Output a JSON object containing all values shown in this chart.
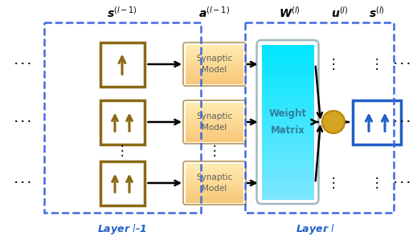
{
  "fig_width": 5.14,
  "fig_height": 3.04,
  "dpi": 100,
  "bg_color": "#ffffff",
  "layer_l1_label": "Layer $l$-1",
  "layer_l_label": "Layer $l$",
  "header_s_l1": "$\\boldsymbol{s}^{(l-1)}$",
  "header_a_l1": "$\\boldsymbol{a}^{(l-1)}$",
  "header_W_l": "$\\boldsymbol{W}^{(l)}$",
  "header_u_l": "$\\boldsymbol{u}^{(l)}$",
  "header_s_l": "$\\boldsymbol{s}^{(l)}$",
  "neuron_box_color": "#8B6914",
  "neuron_fill_color": "#ffffff",
  "synaptic_fill_top": "#fde8b0",
  "synaptic_fill_bot": "#f5c97a",
  "synaptic_edge": "#c0a878",
  "weight_fill_top": "#00e5ff",
  "weight_fill_bot": "#80d8f0",
  "arrow_color": "#8B6914",
  "neuron_circle_fill": "#d4a520",
  "neuron_circle_edge": "#b8860b",
  "dashed_color": "#4169e1",
  "blue_box_color": "#2060c8",
  "label_color": "#2060c8"
}
